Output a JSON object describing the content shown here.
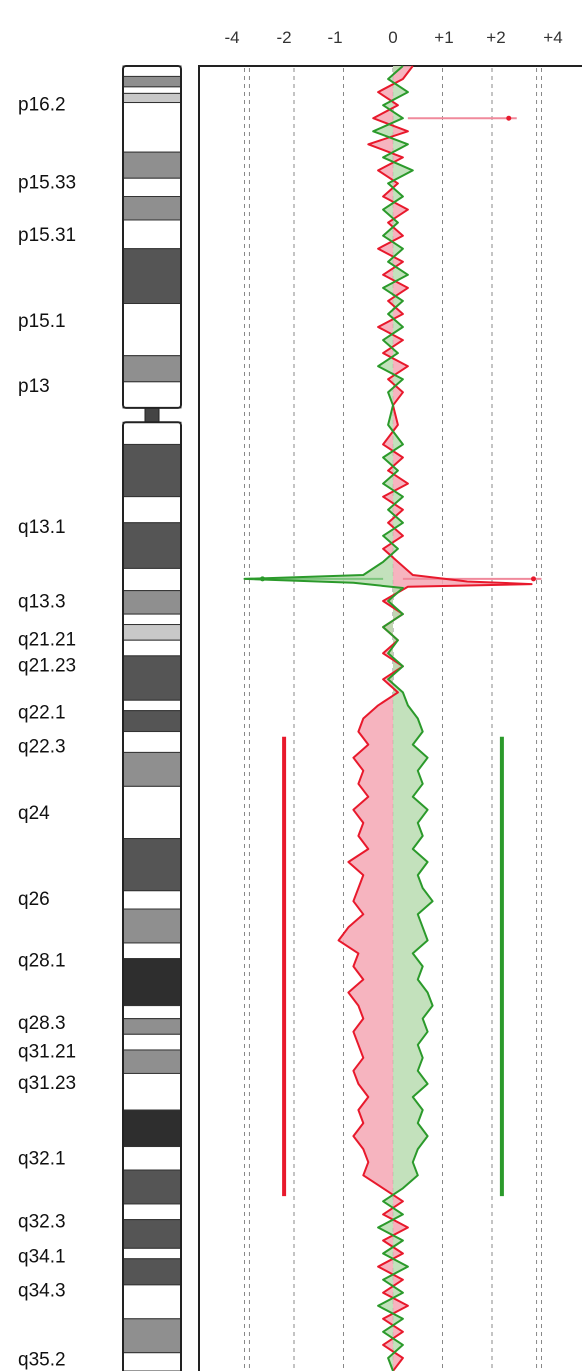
{
  "chart_data": {
    "type": "line",
    "title": "",
    "xlabel": "",
    "ylabel": "",
    "xlim": [
      -4.5,
      4.5
    ],
    "x_ticks": [
      {
        "value": -4,
        "label": "-4"
      },
      {
        "value": -2,
        "label": "-2"
      },
      {
        "value": -1,
        "label": "-1"
      },
      {
        "value": 0,
        "label": "0"
      },
      {
        "value": 1,
        "label": "+1"
      },
      {
        "value": 2,
        "label": "+2"
      },
      {
        "value": 4,
        "label": "+4"
      }
    ],
    "band_labels": [
      {
        "name": "p16.2",
        "pos": 0.014
      },
      {
        "name": "p15.33",
        "pos": 0.074
      },
      {
        "name": "p15.31",
        "pos": 0.114
      },
      {
        "name": "p15.1",
        "pos": 0.18
      },
      {
        "name": "p13",
        "pos": 0.23
      },
      {
        "name": "q13.1",
        "pos": 0.338
      },
      {
        "name": "q13.3",
        "pos": 0.395
      },
      {
        "name": "q21.21",
        "pos": 0.424
      },
      {
        "name": "q21.23",
        "pos": 0.444
      },
      {
        "name": "q22.1",
        "pos": 0.48
      },
      {
        "name": "q22.3",
        "pos": 0.506
      },
      {
        "name": "q24",
        "pos": 0.557
      },
      {
        "name": "q26",
        "pos": 0.623
      },
      {
        "name": "q28.1",
        "pos": 0.67
      },
      {
        "name": "q28.3",
        "pos": 0.718
      },
      {
        "name": "q31.21",
        "pos": 0.74
      },
      {
        "name": "q31.23",
        "pos": 0.764
      },
      {
        "name": "q32.1",
        "pos": 0.822
      },
      {
        "name": "q32.3",
        "pos": 0.87
      },
      {
        "name": "q34.1",
        "pos": 0.897
      },
      {
        "name": "q34.3",
        "pos": 0.923
      },
      {
        "name": "q35.2",
        "pos": 0.976
      }
    ],
    "ideogram_bands": [
      {
        "start": 0.0,
        "end": 0.008,
        "stain": "gneg"
      },
      {
        "start": 0.008,
        "end": 0.016,
        "stain": "gpos50"
      },
      {
        "start": 0.016,
        "end": 0.021,
        "stain": "gneg"
      },
      {
        "start": 0.021,
        "end": 0.028,
        "stain": "gpos25"
      },
      {
        "start": 0.028,
        "end": 0.066,
        "stain": "gneg"
      },
      {
        "start": 0.066,
        "end": 0.086,
        "stain": "gpos50"
      },
      {
        "start": 0.086,
        "end": 0.1,
        "stain": "gneg"
      },
      {
        "start": 0.1,
        "end": 0.118,
        "stain": "gpos50"
      },
      {
        "start": 0.118,
        "end": 0.14,
        "stain": "gneg"
      },
      {
        "start": 0.14,
        "end": 0.182,
        "stain": "gpos75"
      },
      {
        "start": 0.182,
        "end": 0.222,
        "stain": "gneg"
      },
      {
        "start": 0.222,
        "end": 0.242,
        "stain": "gpos50"
      },
      {
        "start": 0.242,
        "end": 0.262,
        "stain": "gneg"
      },
      {
        "start": 0.262,
        "end": 0.273,
        "stain": "acen"
      },
      {
        "start": 0.273,
        "end": 0.29,
        "stain": "gneg"
      },
      {
        "start": 0.29,
        "end": 0.33,
        "stain": "gpos75"
      },
      {
        "start": 0.33,
        "end": 0.35,
        "stain": "gneg"
      },
      {
        "start": 0.35,
        "end": 0.385,
        "stain": "gpos75"
      },
      {
        "start": 0.385,
        "end": 0.402,
        "stain": "gneg"
      },
      {
        "start": 0.402,
        "end": 0.42,
        "stain": "gpos50"
      },
      {
        "start": 0.42,
        "end": 0.428,
        "stain": "gneg"
      },
      {
        "start": 0.428,
        "end": 0.44,
        "stain": "gpos25"
      },
      {
        "start": 0.44,
        "end": 0.452,
        "stain": "gneg"
      },
      {
        "start": 0.452,
        "end": 0.486,
        "stain": "gpos75"
      },
      {
        "start": 0.486,
        "end": 0.494,
        "stain": "gneg"
      },
      {
        "start": 0.494,
        "end": 0.51,
        "stain": "gpos75"
      },
      {
        "start": 0.51,
        "end": 0.526,
        "stain": "gneg"
      },
      {
        "start": 0.526,
        "end": 0.552,
        "stain": "gpos50"
      },
      {
        "start": 0.552,
        "end": 0.592,
        "stain": "gneg"
      },
      {
        "start": 0.592,
        "end": 0.632,
        "stain": "gpos75"
      },
      {
        "start": 0.632,
        "end": 0.646,
        "stain": "gneg"
      },
      {
        "start": 0.646,
        "end": 0.672,
        "stain": "gpos50"
      },
      {
        "start": 0.672,
        "end": 0.684,
        "stain": "gneg"
      },
      {
        "start": 0.684,
        "end": 0.72,
        "stain": "gpos100"
      },
      {
        "start": 0.72,
        "end": 0.73,
        "stain": "gneg"
      },
      {
        "start": 0.73,
        "end": 0.742,
        "stain": "gpos50"
      },
      {
        "start": 0.742,
        "end": 0.754,
        "stain": "gneg"
      },
      {
        "start": 0.754,
        "end": 0.772,
        "stain": "gpos50"
      },
      {
        "start": 0.772,
        "end": 0.8,
        "stain": "gneg"
      },
      {
        "start": 0.8,
        "end": 0.828,
        "stain": "gpos100"
      },
      {
        "start": 0.828,
        "end": 0.846,
        "stain": "gneg"
      },
      {
        "start": 0.846,
        "end": 0.872,
        "stain": "gpos75"
      },
      {
        "start": 0.872,
        "end": 0.884,
        "stain": "gneg"
      },
      {
        "start": 0.884,
        "end": 0.906,
        "stain": "gpos75"
      },
      {
        "start": 0.906,
        "end": 0.914,
        "stain": "gneg"
      },
      {
        "start": 0.914,
        "end": 0.934,
        "stain": "gpos75"
      },
      {
        "start": 0.934,
        "end": 0.96,
        "stain": "gneg"
      },
      {
        "start": 0.96,
        "end": 0.986,
        "stain": "gpos50"
      },
      {
        "start": 0.986,
        "end": 1.0,
        "stain": "gneg"
      }
    ],
    "series": [
      {
        "color": "#e8192c",
        "fill": "#f4a7b4",
        "points": [
          [
            0.0,
            0.4
          ],
          [
            0.01,
            0.2
          ],
          [
            0.02,
            -0.3
          ],
          [
            0.03,
            0.1
          ],
          [
            0.04,
            -0.4
          ],
          [
            0.05,
            0.3
          ],
          [
            0.06,
            -0.5
          ],
          [
            0.07,
            0.2
          ],
          [
            0.08,
            -0.3
          ],
          [
            0.09,
            0.1
          ],
          [
            0.1,
            -0.2
          ],
          [
            0.11,
            0.3
          ],
          [
            0.12,
            -0.1
          ],
          [
            0.13,
            0.2
          ],
          [
            0.14,
            -0.3
          ],
          [
            0.15,
            0.2
          ],
          [
            0.16,
            -0.2
          ],
          [
            0.17,
            0.3
          ],
          [
            0.18,
            -0.1
          ],
          [
            0.19,
            0.2
          ],
          [
            0.2,
            -0.3
          ],
          [
            0.21,
            0.2
          ],
          [
            0.22,
            -0.2
          ],
          [
            0.23,
            0.3
          ],
          [
            0.24,
            -0.1
          ],
          [
            0.25,
            0.2
          ],
          [
            0.26,
            0.0
          ],
          [
            0.275,
            0.1
          ],
          [
            0.29,
            -0.2
          ],
          [
            0.3,
            0.2
          ],
          [
            0.31,
            -0.1
          ],
          [
            0.32,
            0.3
          ],
          [
            0.33,
            -0.2
          ],
          [
            0.34,
            0.2
          ],
          [
            0.35,
            -0.1
          ],
          [
            0.36,
            0.2
          ],
          [
            0.37,
            -0.2
          ],
          [
            0.38,
            0.1
          ],
          [
            0.39,
            0.4
          ],
          [
            0.395,
            1.5
          ],
          [
            0.397,
            2.8
          ],
          [
            0.399,
            0.3
          ],
          [
            0.41,
            -0.2
          ],
          [
            0.42,
            0.2
          ],
          [
            0.43,
            -0.2
          ],
          [
            0.44,
            0.1
          ],
          [
            0.45,
            -0.2
          ],
          [
            0.46,
            0.2
          ],
          [
            0.47,
            -0.2
          ],
          [
            0.48,
            0.1
          ],
          [
            0.49,
            -0.3
          ],
          [
            0.5,
            -0.6
          ],
          [
            0.51,
            -0.7
          ],
          [
            0.52,
            -0.5
          ],
          [
            0.53,
            -0.8
          ],
          [
            0.54,
            -0.6
          ],
          [
            0.55,
            -0.7
          ],
          [
            0.56,
            -0.5
          ],
          [
            0.57,
            -0.8
          ],
          [
            0.58,
            -0.6
          ],
          [
            0.59,
            -0.7
          ],
          [
            0.6,
            -0.5
          ],
          [
            0.61,
            -0.9
          ],
          [
            0.62,
            -0.6
          ],
          [
            0.63,
            -0.7
          ],
          [
            0.64,
            -0.8
          ],
          [
            0.65,
            -0.6
          ],
          [
            0.66,
            -0.9
          ],
          [
            0.67,
            -1.1
          ],
          [
            0.68,
            -0.7
          ],
          [
            0.69,
            -0.8
          ],
          [
            0.7,
            -0.6
          ],
          [
            0.71,
            -0.9
          ],
          [
            0.72,
            -0.7
          ],
          [
            0.73,
            -0.6
          ],
          [
            0.74,
            -0.8
          ],
          [
            0.75,
            -0.7
          ],
          [
            0.76,
            -0.6
          ],
          [
            0.77,
            -0.8
          ],
          [
            0.78,
            -0.7
          ],
          [
            0.79,
            -0.5
          ],
          [
            0.8,
            -0.7
          ],
          [
            0.81,
            -0.6
          ],
          [
            0.82,
            -0.8
          ],
          [
            0.83,
            -0.6
          ],
          [
            0.84,
            -0.5
          ],
          [
            0.85,
            -0.6
          ],
          [
            0.86,
            -0.2
          ],
          [
            0.87,
            0.2
          ],
          [
            0.88,
            -0.2
          ],
          [
            0.89,
            0.3
          ],
          [
            0.9,
            -0.2
          ],
          [
            0.91,
            0.2
          ],
          [
            0.92,
            -0.3
          ],
          [
            0.93,
            0.2
          ],
          [
            0.94,
            -0.2
          ],
          [
            0.95,
            0.3
          ],
          [
            0.96,
            -0.2
          ],
          [
            0.97,
            0.2
          ],
          [
            0.98,
            -0.2
          ],
          [
            0.99,
            0.2
          ],
          [
            1.0,
            0.0
          ]
        ]
      },
      {
        "color": "#2b9a2b",
        "fill": "#b8dcb0",
        "points": [
          [
            0.0,
            0.2
          ],
          [
            0.01,
            -0.1
          ],
          [
            0.02,
            0.3
          ],
          [
            0.03,
            -0.2
          ],
          [
            0.04,
            0.2
          ],
          [
            0.05,
            -0.4
          ],
          [
            0.06,
            0.3
          ],
          [
            0.07,
            -0.2
          ],
          [
            0.08,
            0.4
          ],
          [
            0.09,
            -0.1
          ],
          [
            0.1,
            0.2
          ],
          [
            0.11,
            -0.2
          ],
          [
            0.12,
            0.1
          ],
          [
            0.13,
            -0.2
          ],
          [
            0.14,
            0.2
          ],
          [
            0.15,
            -0.1
          ],
          [
            0.16,
            0.3
          ],
          [
            0.17,
            -0.2
          ],
          [
            0.18,
            0.2
          ],
          [
            0.19,
            -0.1
          ],
          [
            0.2,
            0.2
          ],
          [
            0.21,
            -0.2
          ],
          [
            0.22,
            0.1
          ],
          [
            0.23,
            -0.3
          ],
          [
            0.24,
            0.2
          ],
          [
            0.25,
            -0.1
          ],
          [
            0.26,
            0.0
          ],
          [
            0.275,
            -0.1
          ],
          [
            0.29,
            0.2
          ],
          [
            0.3,
            -0.2
          ],
          [
            0.31,
            0.1
          ],
          [
            0.32,
            -0.2
          ],
          [
            0.33,
            0.2
          ],
          [
            0.34,
            -0.1
          ],
          [
            0.35,
            0.2
          ],
          [
            0.36,
            -0.2
          ],
          [
            0.37,
            0.1
          ],
          [
            0.38,
            -0.2
          ],
          [
            0.39,
            -0.6
          ],
          [
            0.393,
            -3.0
          ],
          [
            0.396,
            -0.8
          ],
          [
            0.4,
            0.2
          ],
          [
            0.41,
            -0.1
          ],
          [
            0.42,
            0.2
          ],
          [
            0.43,
            -0.2
          ],
          [
            0.44,
            0.1
          ],
          [
            0.45,
            -0.1
          ],
          [
            0.46,
            0.2
          ],
          [
            0.47,
            -0.1
          ],
          [
            0.48,
            0.2
          ],
          [
            0.49,
            0.3
          ],
          [
            0.5,
            0.5
          ],
          [
            0.51,
            0.6
          ],
          [
            0.52,
            0.4
          ],
          [
            0.53,
            0.7
          ],
          [
            0.54,
            0.5
          ],
          [
            0.55,
            0.6
          ],
          [
            0.56,
            0.4
          ],
          [
            0.57,
            0.7
          ],
          [
            0.58,
            0.5
          ],
          [
            0.59,
            0.6
          ],
          [
            0.6,
            0.4
          ],
          [
            0.61,
            0.7
          ],
          [
            0.62,
            0.5
          ],
          [
            0.63,
            0.6
          ],
          [
            0.64,
            0.8
          ],
          [
            0.65,
            0.5
          ],
          [
            0.66,
            0.6
          ],
          [
            0.67,
            0.7
          ],
          [
            0.68,
            0.4
          ],
          [
            0.69,
            0.6
          ],
          [
            0.7,
            0.5
          ],
          [
            0.71,
            0.7
          ],
          [
            0.72,
            0.8
          ],
          [
            0.73,
            0.6
          ],
          [
            0.74,
            0.7
          ],
          [
            0.75,
            0.5
          ],
          [
            0.76,
            0.6
          ],
          [
            0.77,
            0.5
          ],
          [
            0.78,
            0.7
          ],
          [
            0.79,
            0.4
          ],
          [
            0.8,
            0.6
          ],
          [
            0.81,
            0.5
          ],
          [
            0.82,
            0.7
          ],
          [
            0.83,
            0.5
          ],
          [
            0.84,
            0.4
          ],
          [
            0.85,
            0.5
          ],
          [
            0.86,
            0.2
          ],
          [
            0.87,
            -0.2
          ],
          [
            0.88,
            0.2
          ],
          [
            0.89,
            -0.3
          ],
          [
            0.9,
            0.2
          ],
          [
            0.91,
            -0.2
          ],
          [
            0.92,
            0.3
          ],
          [
            0.93,
            -0.2
          ],
          [
            0.94,
            0.2
          ],
          [
            0.95,
            -0.3
          ],
          [
            0.96,
            0.2
          ],
          [
            0.97,
            -0.2
          ],
          [
            0.98,
            0.2
          ],
          [
            0.99,
            -0.1
          ],
          [
            1.0,
            0.0
          ]
        ]
      }
    ],
    "pink_outliers": [
      {
        "pos": 0.04,
        "from": 0.3,
        "to": 2.5
      },
      {
        "pos": 0.393,
        "from": 0.2,
        "to": 3.0
      }
    ],
    "green_outliers": [
      {
        "pos": 0.393,
        "from": -0.2,
        "to": -3.0
      }
    ],
    "segments": [
      {
        "side": "left",
        "x": -2.2,
        "start": 0.514,
        "end": 0.866,
        "color": "#e8192c"
      },
      {
        "side": "right",
        "x": 2.2,
        "start": 0.514,
        "end": 0.866,
        "color": "#2b9a2b"
      }
    ]
  }
}
